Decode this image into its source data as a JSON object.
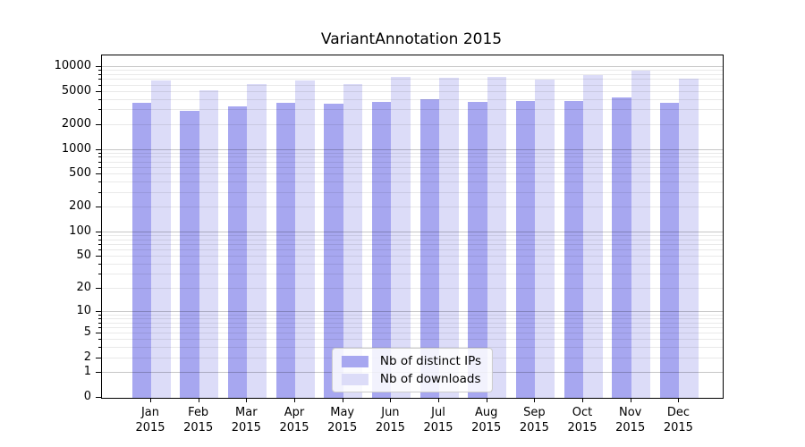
{
  "title": "VariantAnnotation 2015",
  "colors": {
    "ips": "#a7a7f0",
    "downloads": "#dcdcf8",
    "grid_major": "rgba(0,0,0,0.22)",
    "grid_minor": "rgba(0,0,0,0.085)",
    "axis": "#000000",
    "legend_border": "#cccccc"
  },
  "chart_data": {
    "type": "bar",
    "title": "VariantAnnotation 2015",
    "categories": [
      "Jan",
      "Feb",
      "Mar",
      "Apr",
      "May",
      "Jun",
      "Jul",
      "Aug",
      "Sep",
      "Oct",
      "Nov",
      "Dec"
    ],
    "x_tick_second_line": "2015",
    "series": [
      {
        "name": "Nb of distinct IPs",
        "color_key": "ips",
        "values": [
          3700,
          2940,
          3330,
          3710,
          3620,
          3770,
          4130,
          3800,
          3900,
          3900,
          4310,
          3710
        ]
      },
      {
        "name": "Nb of downloads",
        "color_key": "downloads",
        "values": [
          6900,
          5200,
          6260,
          6920,
          6200,
          7690,
          7510,
          7700,
          7150,
          7950,
          9100,
          7330
        ]
      }
    ],
    "y_ticks": [
      0,
      1,
      2,
      5,
      10,
      20,
      50,
      100,
      200,
      500,
      1000,
      2000,
      5000,
      10000
    ],
    "scale": "log10(value+1)",
    "ylim": [
      0,
      10000
    ],
    "grid": true,
    "legend_position": "lower center"
  }
}
